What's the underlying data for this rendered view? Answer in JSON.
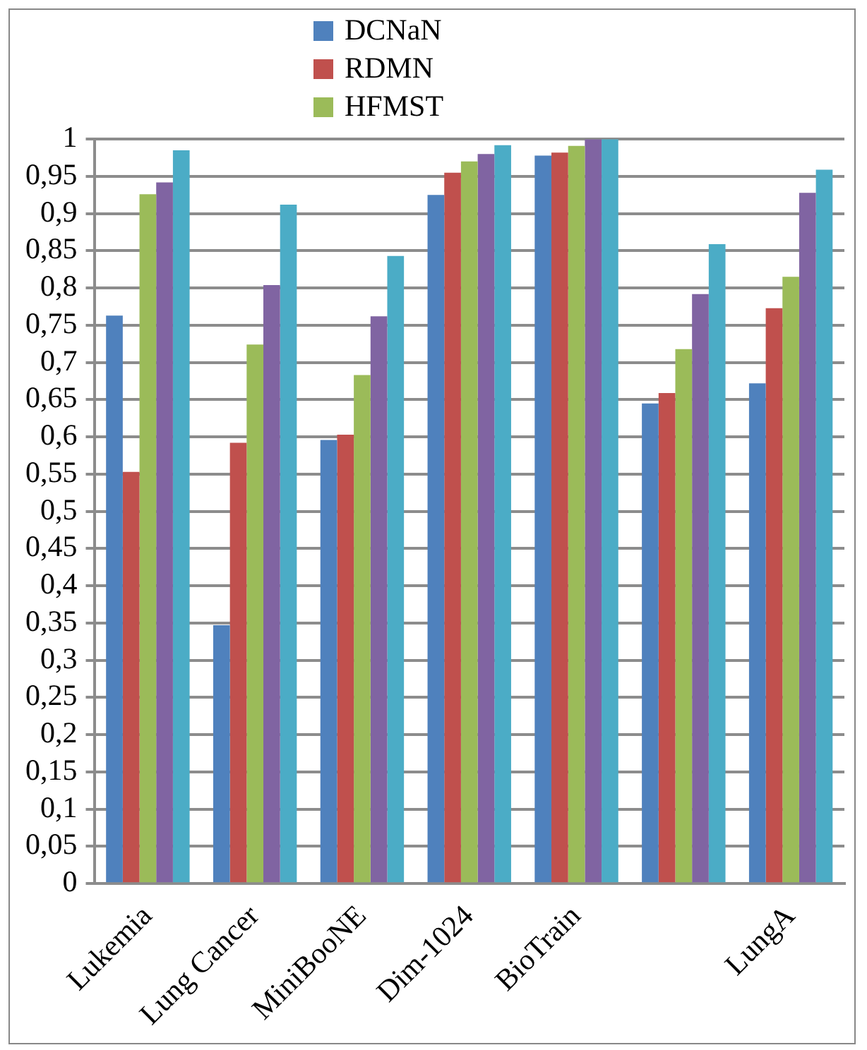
{
  "chart_data": {
    "type": "bar",
    "categories": [
      "Lukemia",
      "Lung Cancer",
      "MiniBooNE",
      "Dim-1024",
      "BioTrain",
      null,
      "LungA"
    ],
    "series": [
      {
        "name": "DCNaN",
        "color": "#4f81bd",
        "values": [
          0.763,
          0.347,
          0.596,
          0.925,
          0.978,
          0.645,
          0.672
        ]
      },
      {
        "name": "RDMN",
        "color": "#c0504d",
        "values": [
          0.553,
          0.592,
          0.603,
          0.955,
          0.982,
          0.659,
          0.773
        ]
      },
      {
        "name": "HFMST",
        "color": "#9bbb59",
        "values": [
          0.926,
          0.724,
          0.683,
          0.97,
          0.991,
          0.718,
          0.815
        ]
      },
      {
        "color": "#8064a2",
        "values": [
          0.942,
          0.804,
          0.762,
          0.98,
          1,
          0.792,
          0.928
        ]
      },
      {
        "color": "#4bacc6",
        "values": [
          0.985,
          0.912,
          0.843,
          0.992,
          1,
          0.859,
          0.959
        ]
      }
    ],
    "ylim": [
      0,
      1
    ],
    "yticks": [
      0,
      {
        "value": 0.05,
        "label": "0,05"
      },
      {
        "value": 0.1,
        "label": "0,1"
      },
      {
        "value": 0.15,
        "label": "0,15"
      },
      {
        "value": 0.2,
        "label": "0,2"
      },
      {
        "value": 0.25,
        "label": "0,25"
      },
      {
        "value": 0.3,
        "label": "0,3"
      },
      {
        "value": 0.35,
        "label": "0,35"
      },
      {
        "value": 0.4,
        "label": "0,4"
      },
      {
        "value": 0.45,
        "label": "0,45"
      },
      {
        "value": 0.5,
        "label": "0,5"
      },
      {
        "value": 0.55,
        "label": "0,55"
      },
      {
        "value": 0.6,
        "label": "0,6"
      },
      {
        "value": 0.65,
        "label": "0,65"
      },
      {
        "value": 0.7,
        "label": "0,7"
      },
      {
        "value": 0.75,
        "label": "0,75"
      },
      {
        "value": 0.8,
        "label": "0,8"
      },
      {
        "value": 0.85,
        "label": "0,85"
      },
      {
        "value": 0.9,
        "label": "0,9"
      },
      {
        "value": 0.95,
        "label": "0,95"
      },
      1
    ],
    "grid": "y",
    "legend": "top"
  }
}
